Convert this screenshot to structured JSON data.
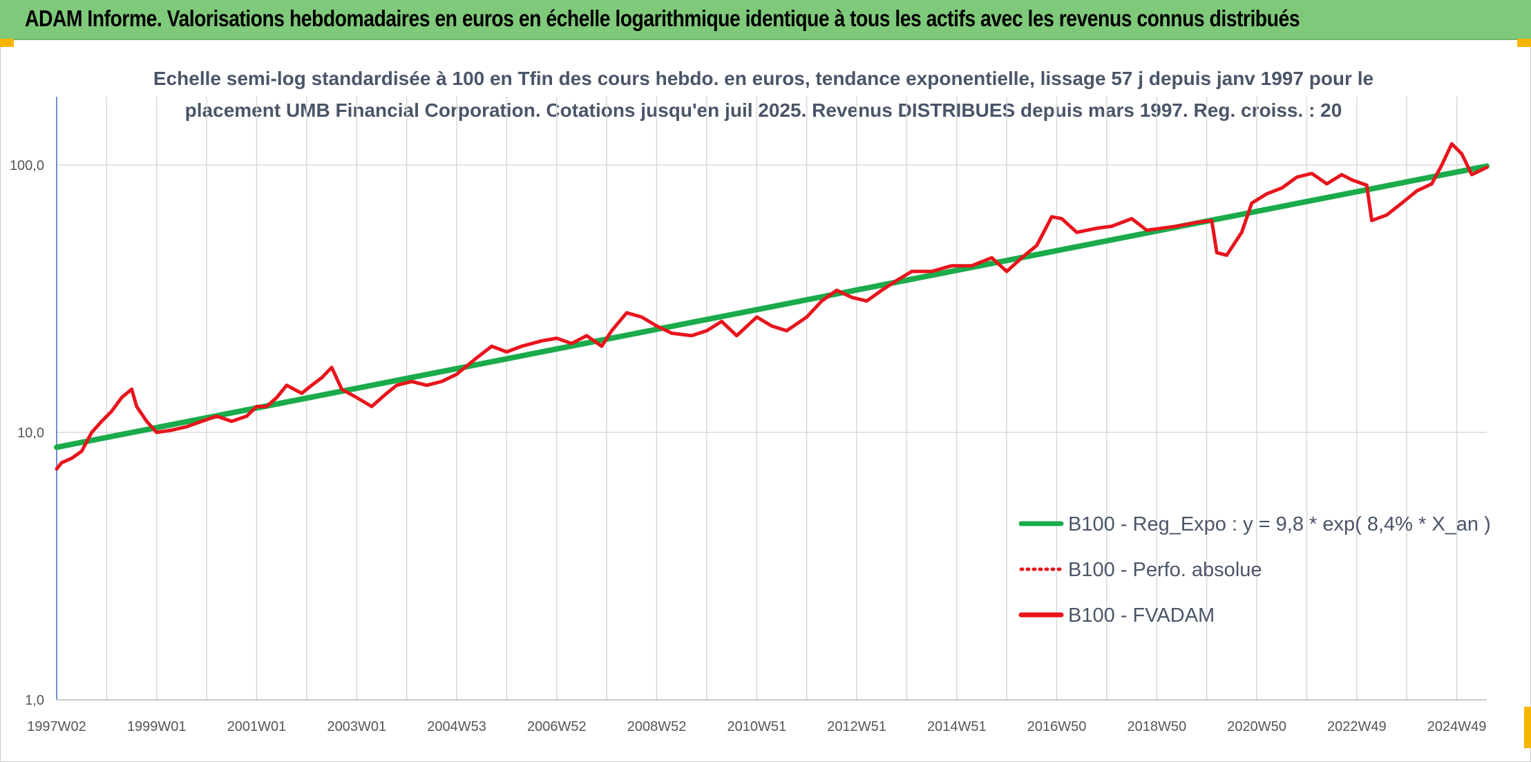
{
  "banner": {
    "title": "ADAM Informe. Valorisations hebdomadaires en euros en échelle logarithmique identique à tous les actifs avec les revenus connus distribués"
  },
  "colors": {
    "banner_bg": "#7fc97a",
    "accent_corner": "#f5b400",
    "regression_line": "#1aab4b",
    "price_line": "#e8141c",
    "subtitle_text": "#4a5568"
  },
  "chart_data": {
    "type": "line",
    "title_lines": [
      "Echelle semi-log standardisée à 100 en Tfin des cours hebdo. en euros, tendance exponentielle, lissage 57 j depuis janv 1997 pour le",
      "placement UMB Financial Corporation. Cotations jusqu'en juil 2025. Revenus DISTRIBUES depuis mars 1997. Reg. croiss. : 20"
    ],
    "y_scale": "log",
    "ylim": [
      1,
      180
    ],
    "y_ticks": [
      {
        "value": 1,
        "label": "1,0"
      },
      {
        "value": 10,
        "label": "10,0"
      },
      {
        "value": 100,
        "label": "100,0"
      }
    ],
    "xlim": [
      1997.0,
      2025.6
    ],
    "x_ticks": [
      {
        "value": 1997.0,
        "label": "1997W02"
      },
      {
        "value": 1999.0,
        "label": "1999W01"
      },
      {
        "value": 2001.0,
        "label": "2001W01"
      },
      {
        "value": 2003.0,
        "label": "2003W01"
      },
      {
        "value": 2005.0,
        "label": "2004W53"
      },
      {
        "value": 2007.0,
        "label": "2006W52"
      },
      {
        "value": 2009.0,
        "label": "2008W52"
      },
      {
        "value": 2011.0,
        "label": "2010W51"
      },
      {
        "value": 2013.0,
        "label": "2012W51"
      },
      {
        "value": 2015.0,
        "label": "2014W51"
      },
      {
        "value": 2017.0,
        "label": "2016W50"
      },
      {
        "value": 2019.0,
        "label": "2018W50"
      },
      {
        "value": 2021.0,
        "label": "2020W50"
      },
      {
        "value": 2023.0,
        "label": "2022W49"
      },
      {
        "value": 2025.0,
        "label": "2024W49"
      }
    ],
    "grid": "vertical and horizontal",
    "legend_position": "bottom-right",
    "series": [
      {
        "name": "B100 - Reg_Expo : y = 9,8 * exp( 8,4% *  X_an )",
        "style": "solid",
        "color": "#1aab4b",
        "x": [
          1997.0,
          2025.6
        ],
        "y": [
          8.8,
          99
        ]
      },
      {
        "name": "B100 - Perfo. absolue",
        "style": "dotted",
        "color": "#e8141c",
        "x": [],
        "y": []
      },
      {
        "name": "B100 - FVADAM",
        "style": "solid",
        "color": "#e8141c",
        "x": [
          1997.0,
          1997.1,
          1997.3,
          1997.5,
          1997.7,
          1997.9,
          1998.1,
          1998.3,
          1998.5,
          1998.6,
          1998.8,
          1999.0,
          1999.3,
          1999.6,
          1999.9,
          2000.2,
          2000.5,
          2000.8,
          2001.0,
          2001.2,
          2001.4,
          2001.6,
          2001.9,
          2002.1,
          2002.3,
          2002.5,
          2002.7,
          2003.0,
          2003.3,
          2003.6,
          2003.8,
          2004.1,
          2004.4,
          2004.7,
          2005.0,
          2005.4,
          2005.7,
          2006.0,
          2006.3,
          2006.7,
          2007.0,
          2007.3,
          2007.6,
          2007.9,
          2008.1,
          2008.4,
          2008.7,
          2009.0,
          2009.3,
          2009.7,
          2010.0,
          2010.3,
          2010.6,
          2011.0,
          2011.3,
          2011.6,
          2012.0,
          2012.3,
          2012.6,
          2012.9,
          2013.2,
          2013.5,
          2013.8,
          2014.1,
          2014.5,
          2014.9,
          2015.3,
          2015.7,
          2016.0,
          2016.3,
          2016.6,
          2016.9,
          2017.1,
          2017.4,
          2017.8,
          2018.1,
          2018.5,
          2018.8,
          2019.1,
          2019.4,
          2019.8,
          2020.1,
          2020.2,
          2020.4,
          2020.7,
          2020.9,
          2021.2,
          2021.5,
          2021.8,
          2022.1,
          2022.4,
          2022.7,
          2022.9,
          2023.2,
          2023.3,
          2023.6,
          2023.9,
          2024.2,
          2024.5,
          2024.7,
          2024.9,
          2025.1,
          2025.3,
          2025.6
        ],
        "y": [
          7.3,
          7.7,
          8.0,
          8.5,
          10.0,
          11.0,
          12.0,
          13.5,
          14.5,
          12.5,
          11.0,
          10.0,
          10.2,
          10.5,
          11.0,
          11.5,
          11.0,
          11.5,
          12.5,
          12.5,
          13.5,
          15.0,
          14.0,
          15.0,
          16.0,
          17.5,
          14.5,
          13.5,
          12.5,
          14.0,
          15.0,
          15.5,
          15.0,
          15.5,
          16.5,
          19.0,
          21.0,
          20.0,
          21.0,
          22.0,
          22.5,
          21.5,
          23.0,
          21.0,
          24.0,
          28.0,
          27.0,
          25.0,
          23.5,
          23.0,
          24.0,
          26.0,
          23.0,
          27.0,
          25.0,
          24.0,
          27.0,
          31.0,
          34.0,
          32.0,
          31.0,
          34.0,
          37.0,
          40.0,
          40.0,
          42.0,
          42.0,
          45.0,
          40.0,
          45.0,
          50.0,
          64.0,
          63.0,
          56.0,
          58.0,
          59.0,
          63.0,
          57.0,
          58.0,
          59.0,
          61.0,
          62.0,
          47.0,
          46.0,
          56.0,
          72.0,
          78.0,
          82.0,
          90.0,
          93.0,
          85.0,
          92.0,
          88.0,
          84.0,
          62.0,
          65.0,
          72.0,
          80.0,
          85.0,
          100.0,
          120.0,
          110.0,
          92.0,
          98.0
        ]
      }
    ]
  }
}
